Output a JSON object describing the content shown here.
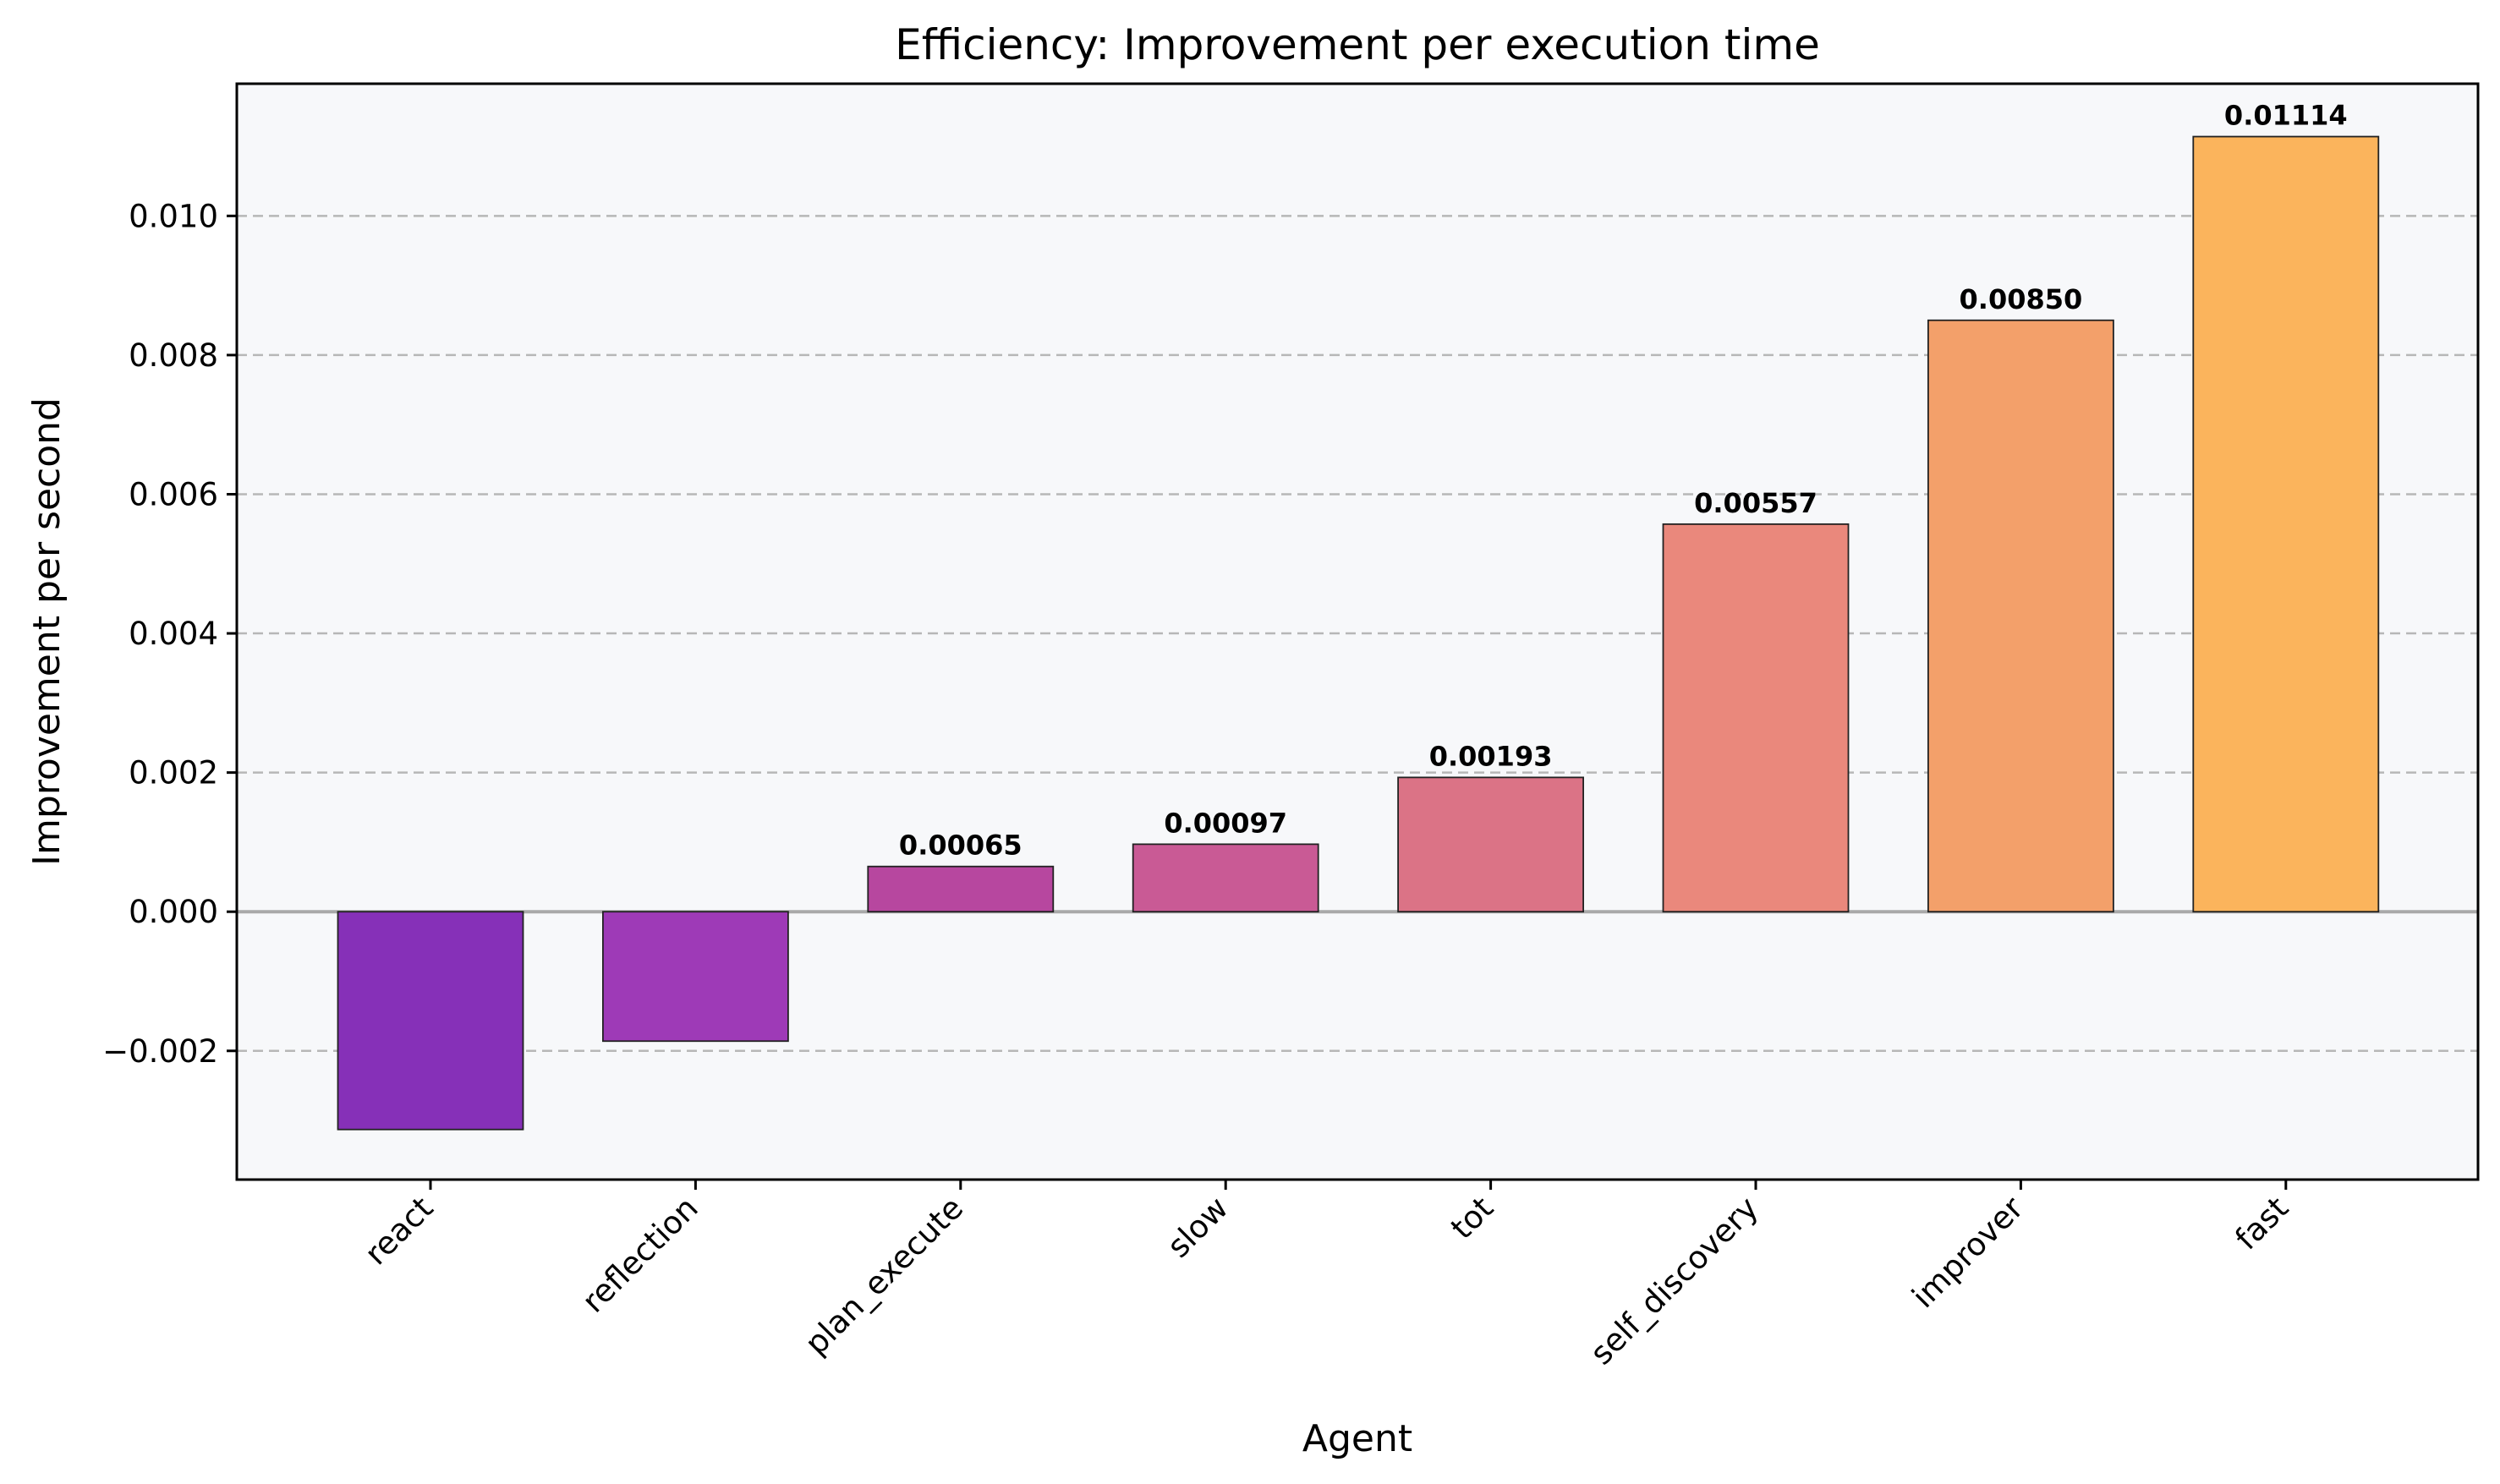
{
  "chart_data": {
    "type": "bar",
    "title": "Efficiency: Improvement per execution time",
    "xlabel": "Agent",
    "ylabel": "Improvement per second",
    "categories": [
      "react",
      "reflection",
      "plan_execute",
      "slow",
      "tot",
      "self_discovery",
      "improver",
      "fast"
    ],
    "values": [
      -0.00313,
      -0.00186,
      0.00065,
      0.00097,
      0.00193,
      0.00557,
      0.0085,
      0.01114
    ],
    "data_labels": [
      "",
      "",
      "0.00065",
      "0.00097",
      "0.00193",
      "0.00557",
      "0.00850",
      "0.01114"
    ],
    "colors": [
      "#8630b8",
      "#9e3ab7",
      "#b7479f",
      "#c95a95",
      "#db7386",
      "#ea887c",
      "#f3a06a",
      "#fbb45c"
    ],
    "y_ticks": [
      -0.002,
      0.0,
      0.002,
      0.004,
      0.006,
      0.008,
      0.01
    ],
    "y_tick_labels": [
      "−0.002",
      "0.000",
      "0.002",
      "0.004",
      "0.006",
      "0.008",
      "0.010"
    ],
    "ylim": [
      -0.00385,
      0.0119
    ],
    "grid": true,
    "grid_axis": "y",
    "zero_line": true,
    "plot_background": "#f7f8fa",
    "x_tick_rotation": -45
  }
}
